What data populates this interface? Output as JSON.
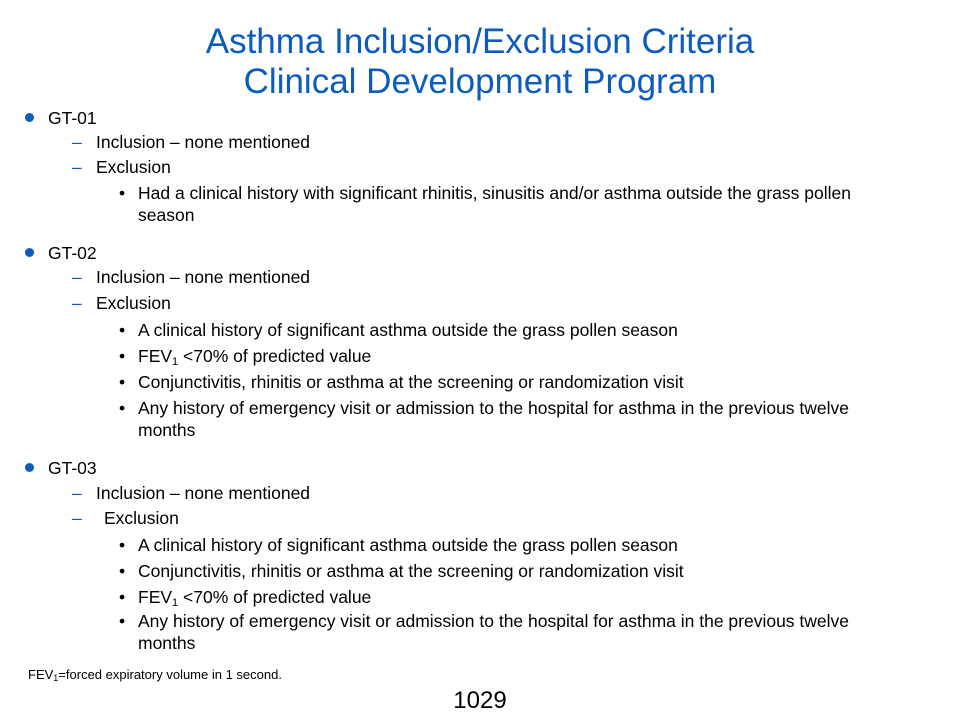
{
  "title": {
    "line1": "Asthma Inclusion/Exclusion Criteria",
    "line2": "Clinical Development Program"
  },
  "colors": {
    "accent": "#0b5cbe",
    "text": "#000000",
    "background": "#ffffff"
  },
  "sections": [
    {
      "heading": "GT-01",
      "inclusion": "Inclusion – none mentioned",
      "exclusion_label": "Exclusion",
      "exclusion_items": [
        "Had a clinical history with significant rhinitis, sinusitis and/or asthma outside the grass pollen season"
      ]
    },
    {
      "heading": "GT-02",
      "inclusion": "Inclusion – none mentioned",
      "exclusion_label": "Exclusion",
      "exclusion_items": [
        "A clinical history of significant asthma outside the grass pollen season",
        {
          "pre": "FEV",
          "sub": "1",
          "post": " <70% of predicted value"
        },
        "Conjunctivitis, rhinitis or asthma at the screening or randomization visit",
        "Any history of emergency visit or admission to the hospital for asthma in the previous twelve months"
      ]
    },
    {
      "heading": "GT-03",
      "inclusion": "Inclusion – none mentioned",
      "exclusion_label": "Exclusion",
      "exclusion_items": [
        "A clinical history of significant asthma outside the grass pollen season",
        "Conjunctivitis, rhinitis or asthma at the screening or randomization visit",
        {
          "pre": "FEV",
          "sub": "1",
          "post": " <70% of predicted value"
        },
        "Any history of emergency visit or admission to the hospital for asthma in the previous twelve months"
      ]
    }
  ],
  "footnote": {
    "pre": "FEV",
    "sub": "1",
    "post": "=forced expiratory volume in 1 second."
  },
  "page_number": "1029"
}
